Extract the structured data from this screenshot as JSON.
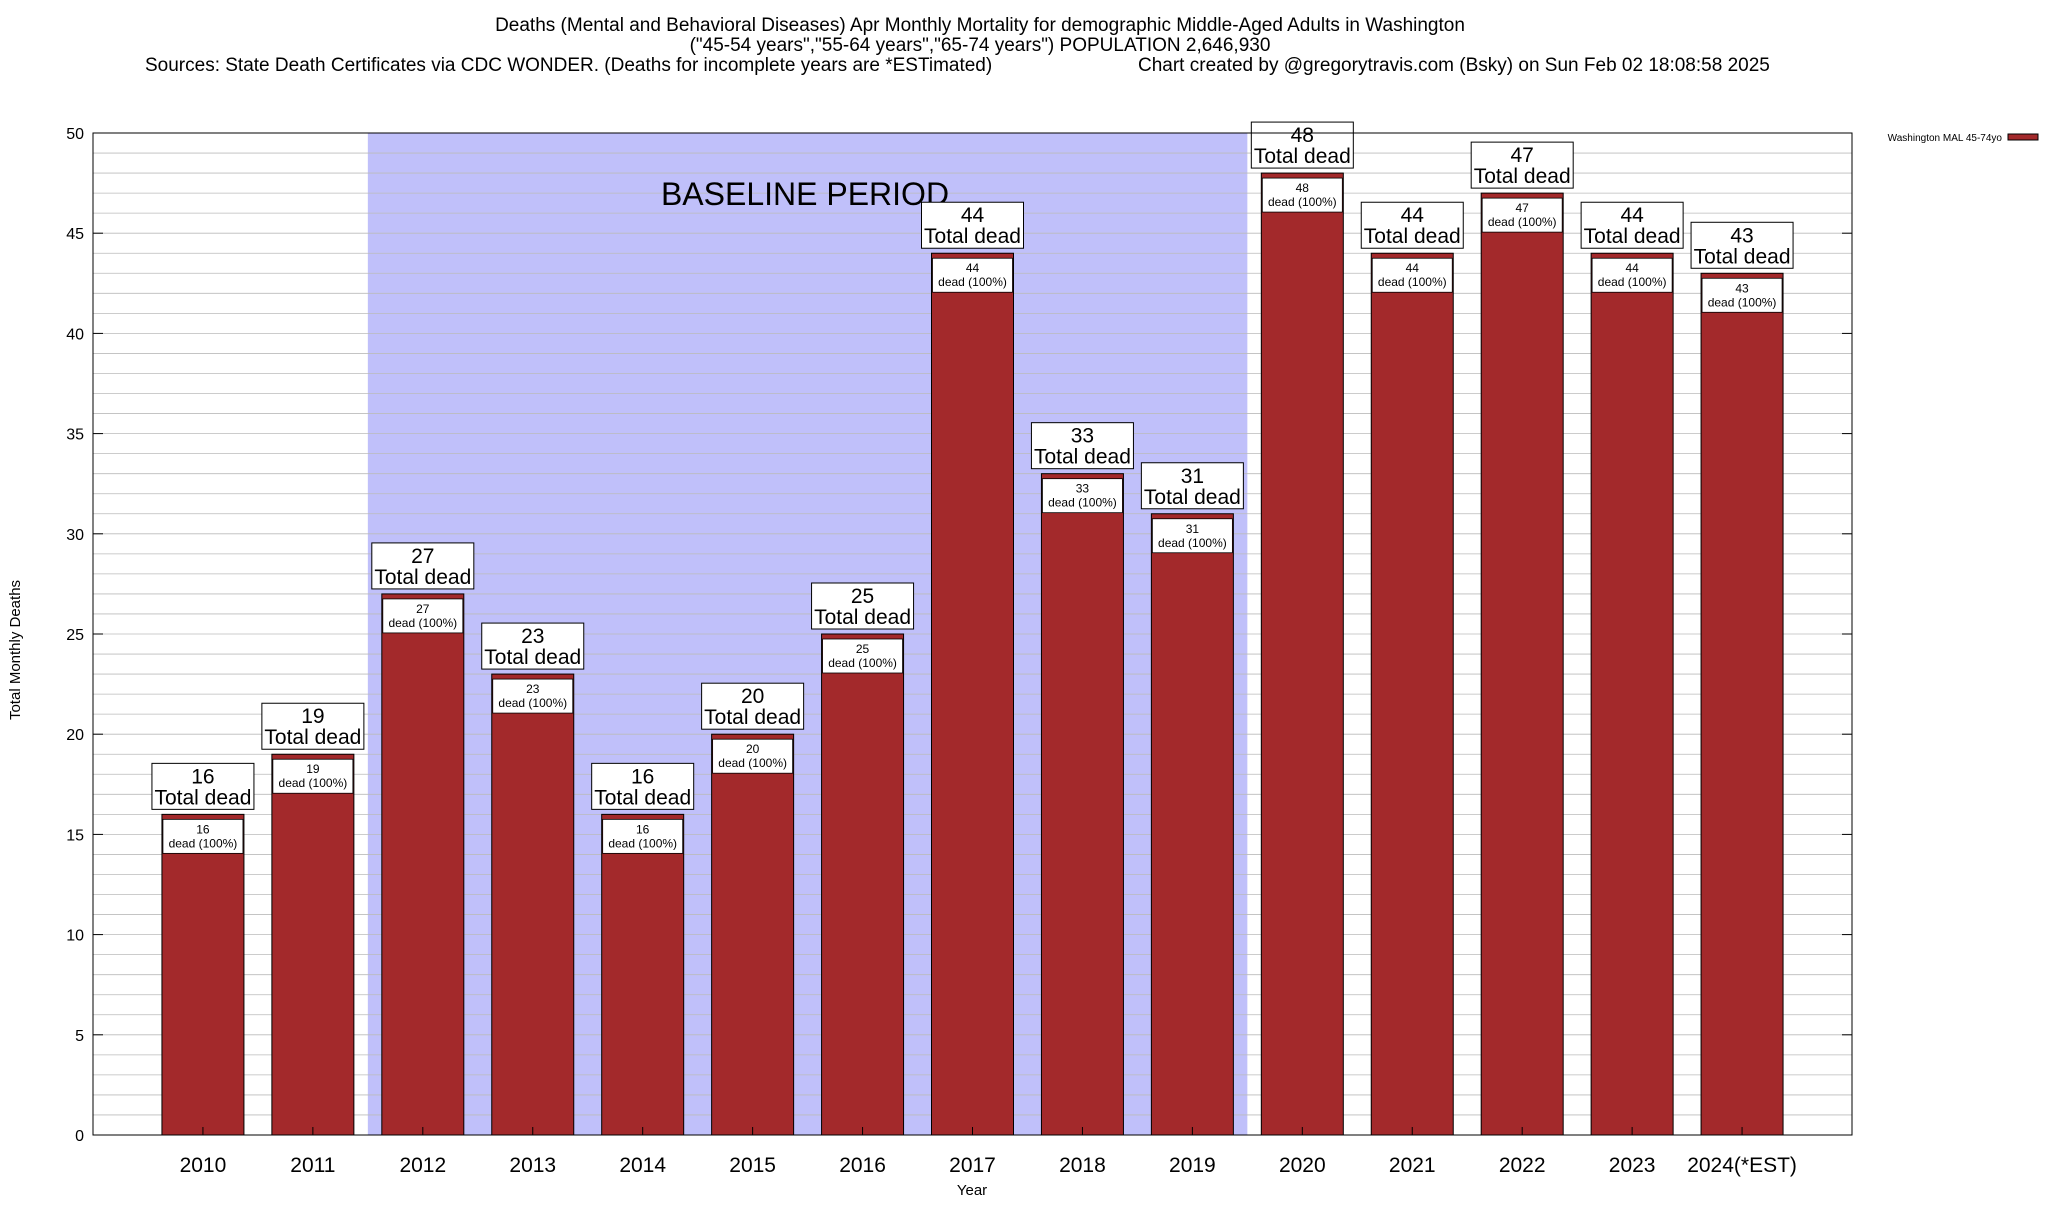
{
  "chart_data": {
    "type": "bar",
    "title": "Deaths (Mental and Behavioral Diseases) Apr Monthly Mortality for demographic Middle-Aged Adults in Washington",
    "subtitle": "(\"45-54 years\",\"55-64 years\",\"65-74 years\") POPULATION 2,646,930",
    "sources": "Sources: State Death Certificates via CDC WONDER. (Deaths for incomplete years are *ESTimated)",
    "credit": "Chart created by @gregorytravis.com (Bsky) on Sun Feb 02 18:08:58 2025",
    "xlabel": "Year",
    "ylabel": "Total Monthly Deaths",
    "ylim": [
      0,
      50
    ],
    "y_ticks": [
      0,
      5,
      10,
      15,
      20,
      25,
      30,
      35,
      40,
      45,
      50
    ],
    "grid": true,
    "legend": {
      "position": "top-right",
      "entries": [
        "Washington MAL 45-74yo"
      ]
    },
    "baseline": {
      "label": "BASELINE PERIOD",
      "from": "2012",
      "to": "2019"
    },
    "categories": [
      "2010",
      "2011",
      "2012",
      "2013",
      "2014",
      "2015",
      "2016",
      "2017",
      "2018",
      "2019",
      "2020",
      "2021",
      "2022",
      "2023",
      "2024(*EST)"
    ],
    "series": [
      {
        "name": "Washington MAL 45-74yo",
        "values": [
          16,
          19,
          27,
          23,
          16,
          20,
          25,
          44,
          33,
          31,
          48,
          44,
          47,
          44,
          43
        ]
      }
    ],
    "total_label": "Total dead",
    "inner_label": "dead (100%)"
  },
  "colors": {
    "bar_fill": "#a3292b",
    "bar_stroke": "#000000",
    "baseline_fill": "#c0c0fa",
    "grid": "#bbbbbb",
    "background": "#ffffff"
  }
}
